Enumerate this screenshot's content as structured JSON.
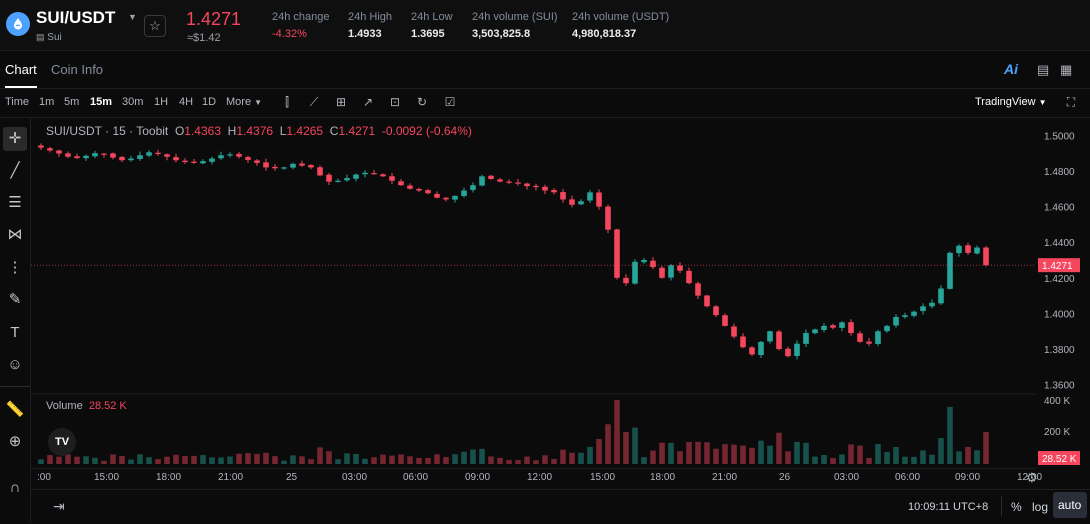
{
  "header": {
    "pair": "SUI/USDT",
    "coin": "Sui",
    "price": "1.4271",
    "fiat": "≈$1.42",
    "stats": [
      {
        "label": "24h change",
        "value": "-4.32%",
        "tone": "red"
      },
      {
        "label": "24h High",
        "value": "1.4933",
        "tone": "white"
      },
      {
        "label": "24h Low",
        "value": "1.3695",
        "tone": "white"
      },
      {
        "label": "24h volume (SUI)",
        "value": "3,503,825.8",
        "tone": "white"
      },
      {
        "label": "24h volume (USDT)",
        "value": "4,980,818.37",
        "tone": "white"
      }
    ]
  },
  "tabs": {
    "chart": "Chart",
    "coin_info": "Coin Info"
  },
  "toolbar": {
    "timeframes": [
      "Time",
      "1m",
      "5m",
      "15m",
      "30m",
      "1H",
      "4H",
      "1D"
    ],
    "active_timeframe": "15m",
    "more": "More",
    "tradingview": "TradingView"
  },
  "legend": {
    "symbol": "SUI/USDT · 15 · Toobit",
    "o_label": "O",
    "o": "1.4363",
    "h_label": "H",
    "h": "1.4376",
    "l_label": "L",
    "l": "1.4265",
    "c_label": "C",
    "c": "1.4271",
    "change": "-0.0092 (-0.64%)"
  },
  "volume_legend": {
    "label": "Volume",
    "value": "28.52 K"
  },
  "bottom": {
    "clock": "10:09:11 UTC+8",
    "percent": "%",
    "log": "log",
    "auto": "auto"
  },
  "colors": {
    "up": "#26a69a",
    "down": "#f6465d",
    "background": "#0b0b0b",
    "accent": "#4da2ff"
  },
  "chart_data": {
    "type": "candlestick",
    "title": "SUI/USDT · 15 · Toobit",
    "interval": "15m",
    "y_ticks": [
      "1.5000",
      "1.4800",
      "1.4600",
      "1.4400",
      "1.4200",
      "1.4000",
      "1.3800",
      "1.3600"
    ],
    "ylim": [
      1.357,
      1.503
    ],
    "current_price_label": "1.4271",
    "volume_ticks": [
      "400 K",
      "200 K"
    ],
    "volume_label": "28.52 K",
    "x_ticks": [
      ":00",
      "15:00",
      "18:00",
      "21:00",
      "25",
      "03:00",
      "06:00",
      "09:00",
      "12:00",
      "15:00",
      "18:00",
      "21:00",
      "26",
      "03:00",
      "06:00",
      "09:00",
      "12:00"
    ],
    "close_path": [
      1.4931,
      1.4915,
      1.4898,
      1.488,
      1.4872,
      1.4885,
      1.49,
      1.4895,
      1.4875,
      1.486,
      1.487,
      1.4888,
      1.4905,
      1.4895,
      1.488,
      1.486,
      1.485,
      1.4845,
      1.4855,
      1.487,
      1.4888,
      1.4893,
      1.488,
      1.4862,
      1.4845,
      1.482,
      1.4815,
      1.482,
      1.484,
      1.483,
      1.482,
      1.4775,
      1.474,
      1.4745,
      1.476,
      1.478,
      1.479,
      1.4785,
      1.477,
      1.4745,
      1.472,
      1.47,
      1.469,
      1.4675,
      1.465,
      1.464,
      1.466,
      1.469,
      1.472,
      1.477,
      1.4755,
      1.474,
      1.4735,
      1.473,
      1.4715,
      1.471,
      1.469,
      1.468,
      1.464,
      1.461,
      1.463,
      1.468,
      1.46,
      1.447,
      1.42,
      1.417,
      1.429,
      1.43,
      1.426,
      1.42,
      1.427,
      1.424,
      1.417,
      1.41,
      1.404,
      1.399,
      1.393,
      1.387,
      1.381,
      1.377,
      1.384,
      1.39,
      1.38,
      1.376,
      1.383,
      1.389,
      1.391,
      1.393,
      1.392,
      1.395,
      1.389,
      1.384,
      1.383,
      1.39,
      1.393,
      1.398,
      1.399,
      1.401,
      1.404,
      1.406,
      1.414,
      1.434,
      1.438,
      1.434,
      1.437,
      1.4271
    ],
    "volume_peak_index": 64
  }
}
